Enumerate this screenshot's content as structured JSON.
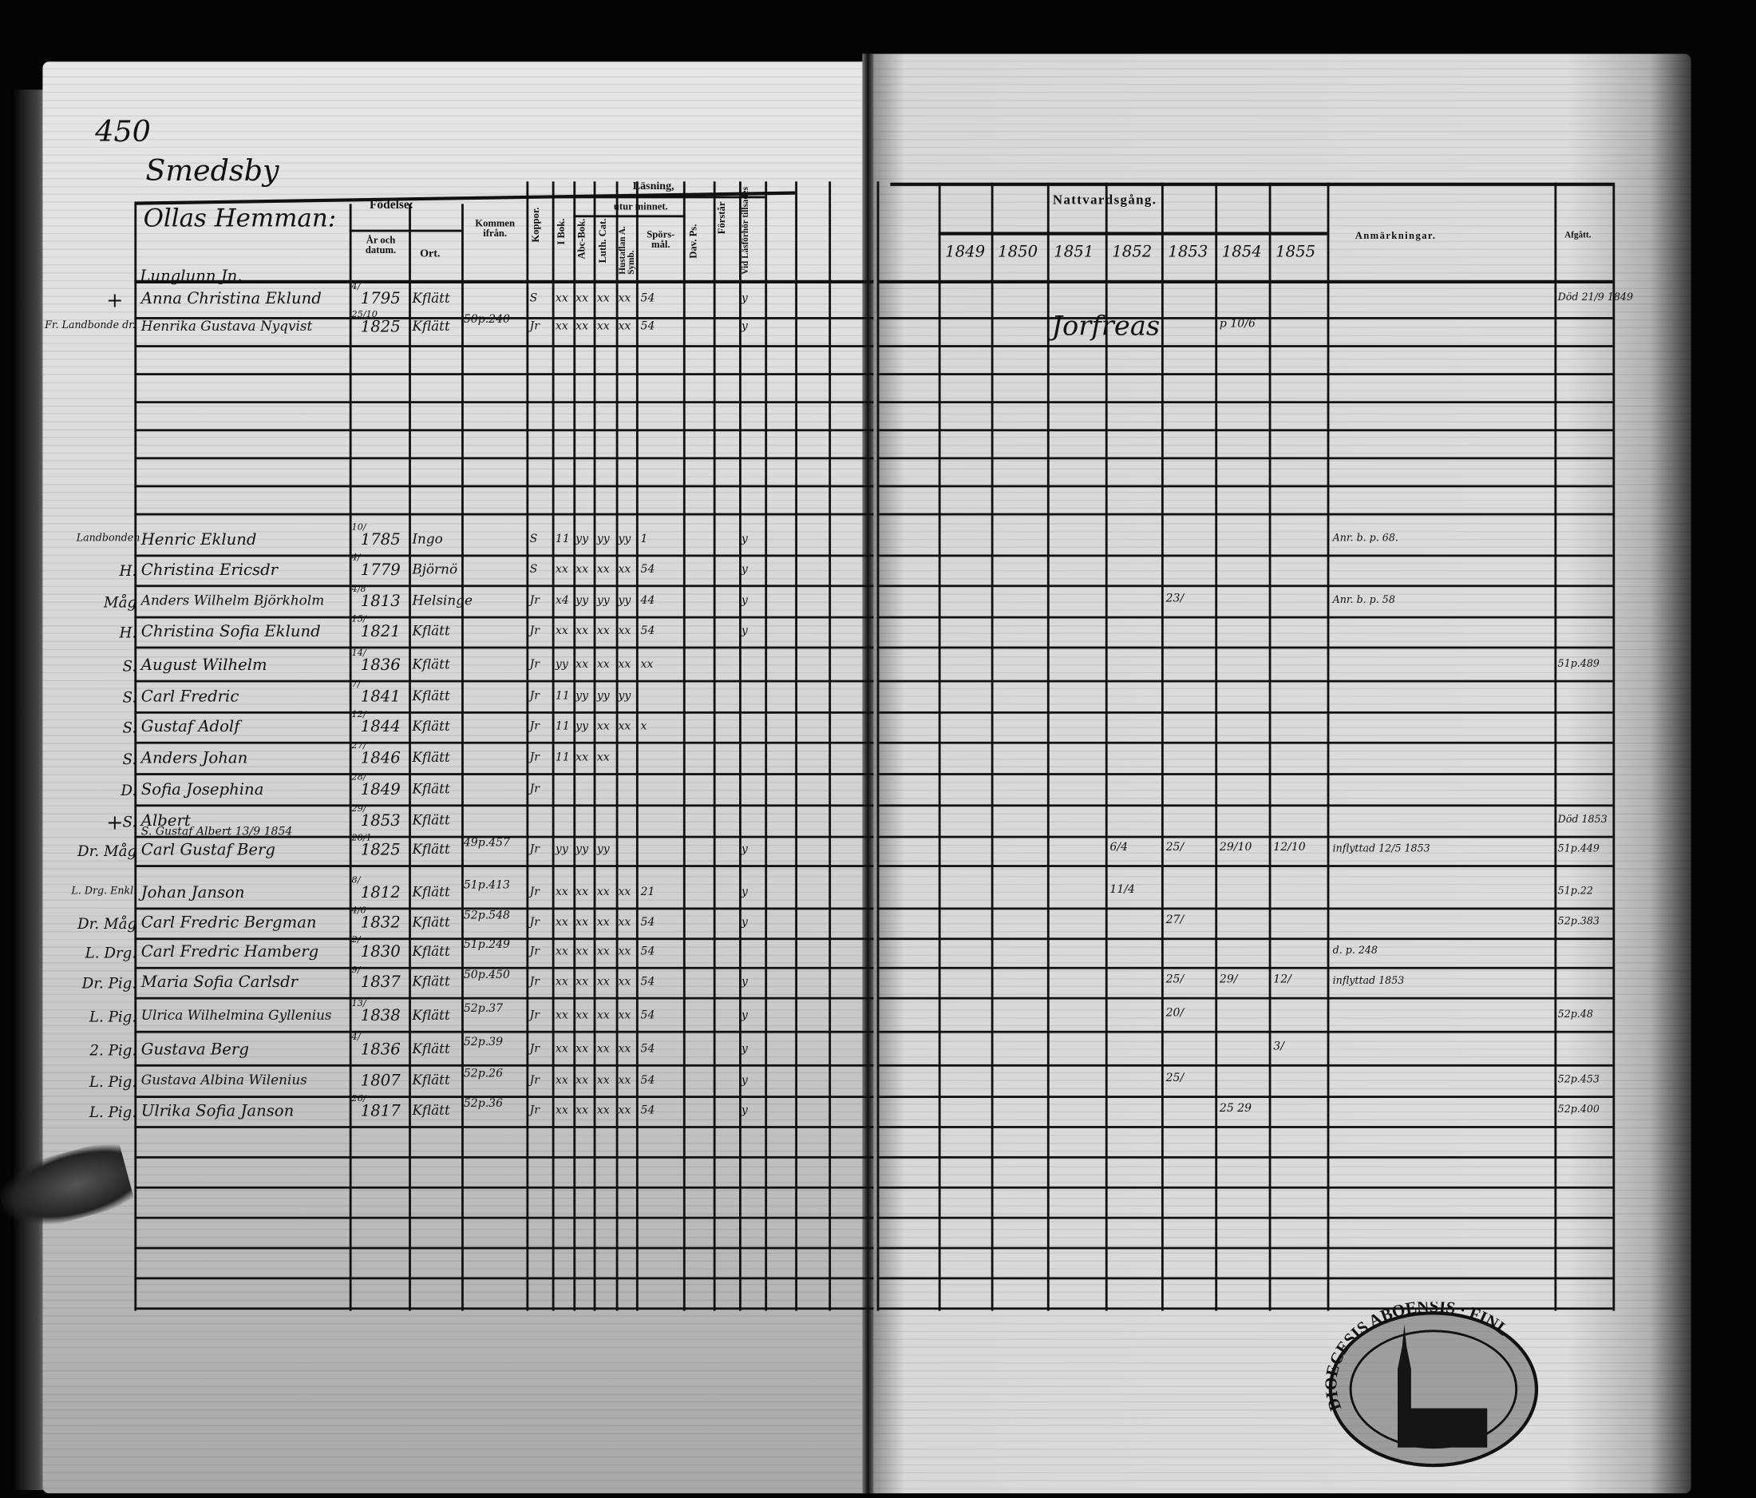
{
  "left_page": {
    "page_number": "450",
    "village": "Smedsby",
    "headers": {
      "hemman": "Ollas Hemman:",
      "fodelse": "Födelse:",
      "ar_datum": "År och datum.",
      "ort": "Ort.",
      "kommen": "Kommen ifrån.",
      "koppor": "Koppor.",
      "lasning": "Läsning,",
      "utur_minnet": "utur minnet.",
      "i_bok": "I Bok.",
      "abc_bok": "Abc-Bok.",
      "luth_cat": "Luth. Cat.",
      "husf": "Hustaflan A. Symb.",
      "sporsmal": "Spörs-mål.",
      "dav_ps": "Dav. Ps.",
      "forstar": "Förstår",
      "lasforhor": "Vid Läsförhör tillsades"
    },
    "household_label": "Lunglunn Jn.",
    "rows": [
      {
        "mark": "+",
        "role": "",
        "name": "Anna Christina Eklund",
        "day": "4/",
        "year": "1795",
        "place": "Kflätt",
        "from": "",
        "reading": [
          "S",
          "xx",
          "xx",
          "xx",
          "xx",
          "54",
          "y"
        ]
      },
      {
        "mark": "",
        "role": "Fr. Landbonde dr.",
        "name": "Henrika Gustava Nyqvist",
        "day": "25/10",
        "year": "1825",
        "place": "Kflätt",
        "from": "50p.240",
        "reading": [
          "Jr",
          "xx",
          "xx",
          "xx",
          "xx",
          "54",
          "y"
        ]
      },
      {
        "mark": "",
        "role": "Landbonden",
        "name": "Henric Eklund",
        "day": "10/",
        "year": "1785",
        "place": "Ingo",
        "from": "",
        "reading": [
          "S",
          "11",
          "yy",
          "yy",
          "yy",
          "1",
          "y"
        ]
      },
      {
        "mark": "",
        "role": "H.",
        "name": "Christina Ericsdr",
        "day": "4/",
        "year": "1779",
        "place": "Björnö",
        "from": "",
        "reading": [
          "S",
          "xx",
          "xx",
          "xx",
          "xx",
          "54",
          "y"
        ]
      },
      {
        "mark": "",
        "role": "Måg",
        "name": "Anders Wilhelm Björkholm",
        "day": "4/8",
        "year": "1813",
        "place": "Helsinge",
        "from": "",
        "reading": [
          "Jr",
          "x4",
          "yy",
          "yy",
          "yy",
          "44",
          "y"
        ]
      },
      {
        "mark": "",
        "role": "H.",
        "name": "Christina Sofia Eklund",
        "day": "15/",
        "year": "1821",
        "place": "Kflätt",
        "from": "",
        "reading": [
          "Jr",
          "xx",
          "xx",
          "xx",
          "xx",
          "54",
          "y"
        ]
      },
      {
        "mark": "",
        "role": "S.",
        "name": "August Wilhelm",
        "day": "14/",
        "year": "1836",
        "place": "Kflätt",
        "from": "",
        "reading": [
          "Jr",
          "yy",
          "xx",
          "xx",
          "xx",
          "xx",
          ""
        ]
      },
      {
        "mark": "",
        "role": "S.",
        "name": "Carl Fredric",
        "day": "7/",
        "year": "1841",
        "place": "Kflätt",
        "from": "",
        "reading": [
          "Jr",
          "11",
          "yy",
          "yy",
          "yy",
          "",
          ""
        ]
      },
      {
        "mark": "",
        "role": "S.",
        "name": "Gustaf Adolf",
        "day": "12/",
        "year": "1844",
        "place": "Kflätt",
        "from": "",
        "reading": [
          "Jr",
          "11",
          "yy",
          "xx",
          "xx",
          "x",
          ""
        ]
      },
      {
        "mark": "",
        "role": "S.",
        "name": "Anders Johan",
        "day": "27/",
        "year": "1846",
        "place": "Kflätt",
        "from": "",
        "reading": [
          "Jr",
          "11",
          "xx",
          "xx",
          "",
          "",
          ""
        ]
      },
      {
        "mark": "",
        "role": "D.",
        "name": "Sofia Josephina",
        "day": "28/",
        "year": "1849",
        "place": "Kflätt",
        "from": "",
        "reading": [
          "Jr",
          "",
          "",
          "",
          "",
          "",
          ""
        ]
      },
      {
        "mark": "+",
        "role": "S.",
        "name": "Albert",
        "day": "29/",
        "year": "1853",
        "place": "Kflätt",
        "from": "",
        "reading": [
          "",
          "",
          "",
          "",
          "",
          "",
          ""
        ]
      },
      {
        "mark": "",
        "role": "Dr. Måg",
        "name": "Carl Gustaf Berg",
        "note": "S. Gustaf Albert 13/9 1854",
        "day": "28/1",
        "year": "1825",
        "place": "Kflätt",
        "from": "49p.457",
        "reading": [
          "Jr",
          "yy",
          "yy",
          "yy",
          "",
          "",
          "y"
        ]
      },
      {
        "mark": "",
        "role": "L. Drg. Enkl.",
        "name": "Johan Janson",
        "day": "8/",
        "year": "1812",
        "place": "Kflätt",
        "from": "51p.413",
        "reading": [
          "Jr",
          "xx",
          "xx",
          "xx",
          "xx",
          "21",
          "y"
        ]
      },
      {
        "mark": "",
        "role": "Dr. Måg",
        "name": "Carl Fredric Bergman",
        "day": "4/6",
        "year": "1832",
        "place": "Kflätt",
        "from": "52p.548",
        "reading": [
          "Jr",
          "xx",
          "xx",
          "xx",
          "xx",
          "54",
          "y"
        ]
      },
      {
        "mark": "",
        "role": "L. Drg.",
        "name": "Carl Fredric Hamberg",
        "day": "2/",
        "year": "1830",
        "place": "Kflätt",
        "from": "51p.249",
        "reading": [
          "Jr",
          "xx",
          "xx",
          "xx",
          "xx",
          "54",
          ""
        ]
      },
      {
        "mark": "",
        "role": "Dr. Pig.",
        "name": "Maria Sofia Carlsdr",
        "day": "9/",
        "year": "1837",
        "place": "Kflätt",
        "from": "50p.450",
        "reading": [
          "Jr",
          "xx",
          "xx",
          "xx",
          "xx",
          "54",
          "y"
        ]
      },
      {
        "mark": "",
        "role": "L. Pig.",
        "name": "Ulrica Wilhelmina Gyllenius",
        "day": "13/",
        "year": "1838",
        "place": "Kflätt",
        "from": "52p.37",
        "reading": [
          "Jr",
          "xx",
          "xx",
          "xx",
          "xx",
          "54",
          "y"
        ]
      },
      {
        "mark": "",
        "role": "2. Pig.",
        "name": "Gustava Berg",
        "day": "4/",
        "year": "1836",
        "place": "Kflätt",
        "from": "52p.39",
        "reading": [
          "Jr",
          "xx",
          "xx",
          "xx",
          "xx",
          "54",
          "y"
        ]
      },
      {
        "mark": "",
        "role": "L. Pig.",
        "name": "Gustava Albina Wilenius",
        "day": "",
        "year": "1807",
        "place": "Kflätt",
        "from": "52p.26",
        "reading": [
          "Jr",
          "xx",
          "xx",
          "xx",
          "xx",
          "54",
          "y"
        ]
      },
      {
        "mark": "",
        "role": "L. Pig.",
        "name": "Ulrika Sofia Janson",
        "day": "26/",
        "year": "1817",
        "place": "Kflätt",
        "from": "52p.36",
        "reading": [
          "Jr",
          "xx",
          "xx",
          "xx",
          "xx",
          "54",
          "y"
        ]
      }
    ]
  },
  "right_page": {
    "headers": {
      "nattvardsgang": "Nattvardsgång.",
      "years": [
        "1849",
        "1850",
        "1851",
        "1852",
        "1853",
        "1854",
        "1855"
      ],
      "anmarkningar": "Anmärkningar.",
      "afgatt": "Afgått."
    },
    "rows": [
      {
        "communion": [
          "",
          "",
          "",
          "",
          "",
          "",
          ""
        ],
        "remark": "",
        "afgatt": "Död 21/9 1849"
      },
      {
        "communion": [
          "",
          "",
          "Jorfreas",
          "",
          "",
          "p 10/6",
          ""
        ],
        "remark": "",
        "afgatt": ""
      },
      {
        "communion": [
          "",
          "",
          "",
          "",
          "",
          "",
          ""
        ],
        "remark": "Anr. b. p. 68.",
        "afgatt": ""
      },
      {
        "communion": [
          "",
          "",
          "",
          "",
          "",
          "",
          ""
        ],
        "remark": "",
        "afgatt": ""
      },
      {
        "communion": [
          "",
          "",
          "",
          "",
          "23/",
          "",
          ""
        ],
        "remark": "Anr. b. p. 58",
        "afgatt": ""
      },
      {
        "communion": [
          "",
          "",
          "",
          "",
          "",
          "",
          ""
        ],
        "remark": "",
        "afgatt": ""
      },
      {
        "communion": [
          "",
          "",
          "",
          "",
          "",
          "",
          ""
        ],
        "remark": "",
        "afgatt": "51p.489"
      },
      {
        "communion": [
          "",
          "",
          "",
          "",
          "",
          "",
          ""
        ],
        "remark": "",
        "afgatt": ""
      },
      {
        "communion": [
          "",
          "",
          "",
          "",
          "",
          "",
          ""
        ],
        "remark": "",
        "afgatt": ""
      },
      {
        "communion": [
          "",
          "",
          "",
          "",
          "",
          "",
          ""
        ],
        "remark": "",
        "afgatt": ""
      },
      {
        "communion": [
          "",
          "",
          "",
          "",
          "",
          "",
          ""
        ],
        "remark": "",
        "afgatt": ""
      },
      {
        "communion": [
          "",
          "",
          "",
          "",
          "",
          "",
          ""
        ],
        "remark": "",
        "afgatt": "Död 1853"
      },
      {
        "communion": [
          "",
          "",
          "",
          "6/4",
          "25/",
          "29/10",
          "12/10"
        ],
        "remark": "inflyttad 12/5 1853",
        "afgatt": "51p.449"
      },
      {
        "communion": [
          "",
          "",
          "",
          "11/4",
          "",
          "",
          ""
        ],
        "remark": "",
        "afgatt": "51p.22"
      },
      {
        "communion": [
          "",
          "",
          "",
          "",
          "27/",
          "",
          ""
        ],
        "remark": "",
        "afgatt": "52p.383"
      },
      {
        "communion": [
          "",
          "",
          "",
          "",
          "",
          "",
          ""
        ],
        "remark": "d. p. 248",
        "afgatt": ""
      },
      {
        "communion": [
          "",
          "",
          "",
          "",
          "25/",
          "29/",
          "12/"
        ],
        "remark": "inflyttad 1853",
        "afgatt": ""
      },
      {
        "communion": [
          "",
          "",
          "",
          "",
          "20/",
          "",
          ""
        ],
        "remark": "",
        "afgatt": "52p.48"
      },
      {
        "communion": [
          "",
          "",
          "",
          "",
          "",
          "",
          "3/"
        ],
        "remark": "",
        "afgatt": ""
      },
      {
        "communion": [
          "",
          "",
          "",
          "",
          "25/",
          "",
          ""
        ],
        "remark": "",
        "afgatt": "52p.453"
      },
      {
        "communion": [
          "",
          "",
          "",
          "",
          "",
          "25 29",
          ""
        ],
        "remark": "",
        "afgatt": "52p.400"
      }
    ]
  },
  "stamp": {
    "text": "DIOECESIS ABOENSIS · FINL"
  },
  "colors": {
    "ink": "#111111",
    "paper": "#d6d6d6",
    "background": "#050505"
  }
}
